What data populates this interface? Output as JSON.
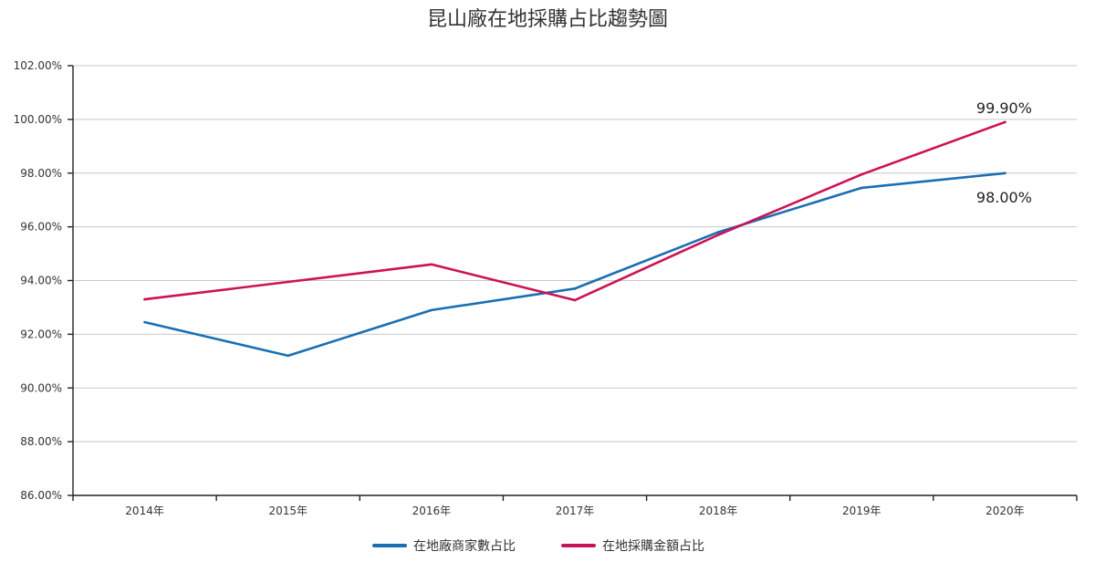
{
  "chart_data": {
    "type": "line",
    "title": "昆山廠在地採購占比趨勢圖",
    "categories": [
      "2014年",
      "2015年",
      "2016年",
      "2017年",
      "2018年",
      "2019年",
      "2020年"
    ],
    "y_ticks": [
      "86.00%",
      "88.00%",
      "90.00%",
      "92.00%",
      "94.00%",
      "96.00%",
      "98.00%",
      "100.00%",
      "102.00%"
    ],
    "ylim": [
      86,
      102
    ],
    "grid": true,
    "legend_position": "bottom-center",
    "series": [
      {
        "name": "在地廠商家數占比",
        "color": "#1a6fb3",
        "values": [
          92.45,
          91.2,
          92.9,
          93.7,
          95.8,
          97.45,
          98.0
        ]
      },
      {
        "name": "在地採購金額占比",
        "color": "#cc1256",
        "values": [
          93.3,
          93.95,
          94.6,
          93.27,
          95.7,
          97.95,
          99.9
        ]
      }
    ],
    "annotations": [
      {
        "series": 1,
        "index": 6,
        "text": "99.90%",
        "placement": "above"
      },
      {
        "series": 0,
        "index": 6,
        "text": "98.00%",
        "placement": "below"
      }
    ]
  }
}
